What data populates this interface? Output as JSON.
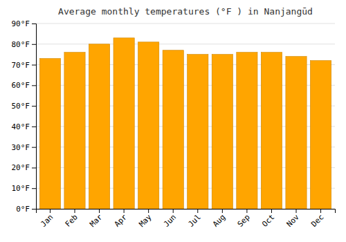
{
  "chart_data": {
    "type": "bar",
    "title": "Average monthly temperatures (°F ) in Nanjangūd",
    "categories": [
      "Jan",
      "Feb",
      "Mar",
      "Apr",
      "May",
      "Jun",
      "Jul",
      "Aug",
      "Sep",
      "Oct",
      "Nov",
      "Dec"
    ],
    "values": [
      73,
      76,
      80,
      83,
      81,
      77,
      75,
      75,
      76,
      76,
      74,
      72
    ],
    "color": "#FFA500",
    "ylim": [
      0,
      90
    ],
    "yticks": [
      {
        "value": 0,
        "label": "0°F"
      },
      {
        "value": 10,
        "label": "10°F"
      },
      {
        "value": 20,
        "label": "20°F"
      },
      {
        "value": 30,
        "label": "30°F"
      },
      {
        "value": 40,
        "label": "40°F"
      },
      {
        "value": 50,
        "label": "50°F"
      },
      {
        "value": 60,
        "label": "60°F"
      },
      {
        "value": 70,
        "label": "70°F"
      },
      {
        "value": 80,
        "label": "80°F"
      },
      {
        "value": 90,
        "label": "90°F"
      }
    ],
    "grid": true
  }
}
